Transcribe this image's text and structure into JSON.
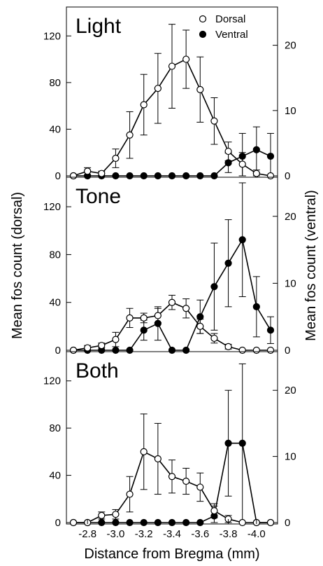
{
  "chart_data": {
    "type": "line",
    "x": [
      -2.7,
      -2.8,
      -2.9,
      -3.0,
      -3.1,
      -3.2,
      -3.3,
      -3.4,
      -3.5,
      -3.6,
      -3.7,
      -3.8,
      -3.9,
      -4.0,
      -4.1
    ],
    "xticks": [
      "-2.8",
      "-3.0",
      "-3.2",
      "-3.4",
      "-3.6",
      "-3.8",
      "-4.0"
    ],
    "xtick_values": [
      -2.8,
      -3.0,
      -3.2,
      -3.4,
      -3.6,
      -3.8,
      -4.0
    ],
    "xlabel": "Distance from Bregma (mm)",
    "ylabel_left": "Mean fos count (dorsal)",
    "ylabel_right": "Mean fos count (ventral)",
    "ylim_left": [
      0,
      140
    ],
    "ylim_right": [
      0,
      25
    ],
    "yticks_left": [
      "0",
      "40",
      "80",
      "120"
    ],
    "ytick_values_left": [
      0,
      40,
      80,
      120
    ],
    "yticks_right": [
      "0",
      "10",
      "20"
    ],
    "ytick_values_right": [
      0,
      10,
      20
    ],
    "legend": {
      "position": "top-right",
      "entries": [
        {
          "label": "Dorsal",
          "marker": "open-circle"
        },
        {
          "label": "Ventral",
          "marker": "filled-circle"
        }
      ]
    },
    "panels": [
      {
        "title": "Light",
        "series": [
          {
            "name": "Dorsal",
            "axis": "left",
            "values": [
              0,
              4,
              2,
              15,
              35,
              61,
              75,
              94,
              100,
              74,
              47,
              21,
              10,
              2,
              0
            ],
            "errors": [
              0,
              3,
              2,
              8,
              20,
              26,
              30,
              36,
              25,
              28,
              20,
              8,
              10,
              3,
              0
            ]
          },
          {
            "name": "Ventral",
            "axis": "right",
            "values": [
              0,
              0,
              0,
              0,
              0,
              0,
              0,
              0,
              0,
              0,
              0,
              2,
              3,
              4,
              3
            ],
            "errors": [
              0,
              0,
              0,
              0,
              0,
              0,
              0,
              0,
              0,
              0,
              0,
              1.5,
              3.5,
              3.5,
              3.5
            ]
          }
        ]
      },
      {
        "title": "Tone",
        "series": [
          {
            "name": "Dorsal",
            "axis": "left",
            "values": [
              0,
              2,
              4,
              9,
              27,
              27,
              29,
              40,
              35,
              20,
              10,
              3,
              0,
              0,
              0
            ],
            "errors": [
              0,
              2,
              2,
              6,
              8,
              4,
              6,
              6,
              8,
              6,
              4,
              2,
              0,
              0,
              0
            ]
          },
          {
            "name": "Ventral",
            "axis": "right",
            "values": [
              0,
              0,
              0,
              0,
              0,
              3,
              4,
              0,
              0,
              5,
              9.5,
              13,
              16.5,
              6.5,
              3
            ],
            "errors": [
              0,
              0,
              0,
              0,
              0,
              1.5,
              2.5,
              0,
              0,
              2.5,
              6.5,
              6.5,
              8.5,
              4.5,
              2
            ]
          }
        ]
      },
      {
        "title": "Both",
        "series": [
          {
            "name": "Dorsal",
            "axis": "left",
            "values": [
              0,
              0,
              6,
              7,
              24,
              60,
              54,
              39,
              35,
              30,
              10,
              3,
              0,
              0,
              0
            ],
            "errors": [
              0,
              0,
              3,
              4,
              15,
              32,
              30,
              14,
              11,
              12,
              6,
              3,
              0,
              0,
              0
            ]
          },
          {
            "name": "Ventral",
            "axis": "right",
            "values": [
              0,
              0,
              0,
              0,
              0,
              0,
              0,
              0,
              0,
              0,
              1,
              12,
              12,
              0,
              0
            ],
            "errors": [
              0,
              0,
              0,
              0,
              0,
              0,
              0,
              0,
              0,
              0,
              1.5,
              8,
              12,
              0,
              0
            ]
          }
        ]
      }
    ]
  }
}
